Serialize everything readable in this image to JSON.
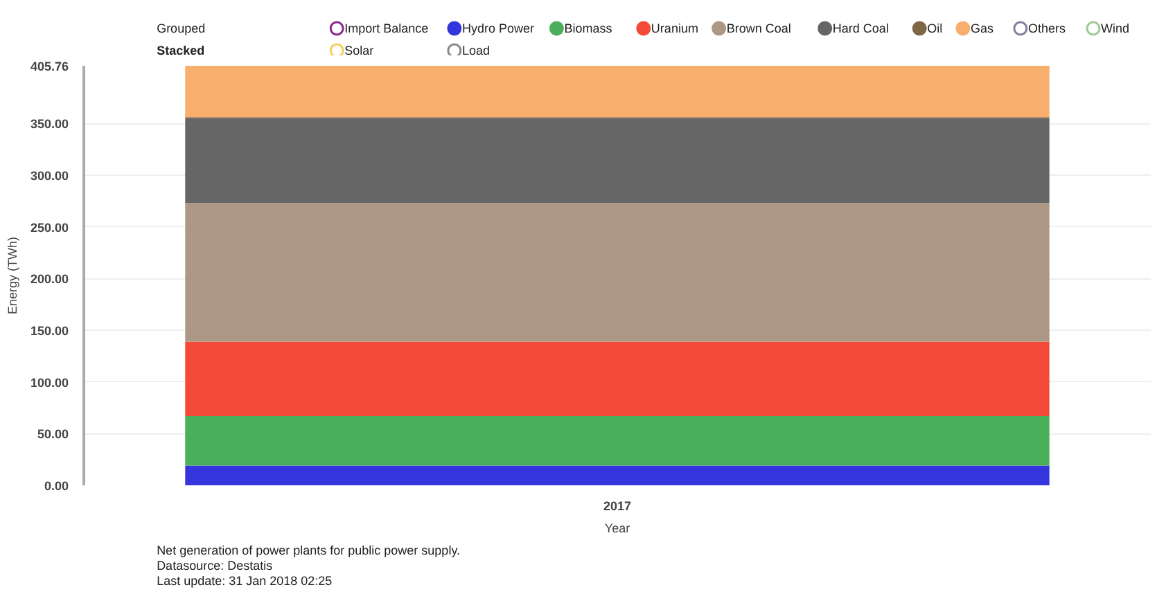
{
  "chart_data": {
    "type": "bar",
    "stacked": true,
    "categories": [
      "2017"
    ],
    "series": [
      {
        "name": "Import Balance",
        "color": "#8b2a8b",
        "values": [
          null
        ]
      },
      {
        "name": "Hydro Power",
        "color": "#3535dd",
        "values": [
          19
        ]
      },
      {
        "name": "Biomass",
        "color": "#4aaf5a",
        "values": [
          48
        ]
      },
      {
        "name": "Uranium",
        "color": "#f44a3a",
        "values": [
          72
        ]
      },
      {
        "name": "Brown Coal",
        "color": "#ac9884",
        "values": [
          134
        ]
      },
      {
        "name": "Hard Coal",
        "color": "#666666",
        "values": [
          82
        ]
      },
      {
        "name": "Oil",
        "color": "#7f6647",
        "values": [
          1
        ]
      },
      {
        "name": "Gas",
        "color": "#f8ae6c",
        "values": [
          49.76
        ]
      },
      {
        "name": "Others",
        "color": "#8080a0",
        "values": [
          null
        ]
      },
      {
        "name": "Wind",
        "color": "#a0c890",
        "values": [
          null
        ]
      },
      {
        "name": "Solar",
        "color": "#f0d060",
        "values": [
          null
        ]
      },
      {
        "name": "Load",
        "color": "#888888",
        "values": [
          null
        ]
      }
    ],
    "xlabel": "Year",
    "ylabel": "Energy (TWh)",
    "ylim": [
      0,
      405.76
    ],
    "yticks": [
      {
        "value": 0,
        "label": "0.00"
      },
      {
        "value": 50,
        "label": "50.00"
      },
      {
        "value": 100,
        "label": "100.00"
      },
      {
        "value": 150,
        "label": "150.00"
      },
      {
        "value": 200,
        "label": "200.00"
      },
      {
        "value": 250,
        "label": "250.00"
      },
      {
        "value": 300,
        "label": "300.00"
      },
      {
        "value": 350,
        "label": "350.00"
      },
      {
        "value": 405.76,
        "label": "405.76"
      }
    ],
    "grid": "y",
    "legend": "top",
    "annotations": [
      "Grouped",
      "Stacked",
      "Net generation of power plants for public power supply.",
      "Datasource: Destatis",
      "Last update: 31 Jan 2018 02:25"
    ]
  }
}
